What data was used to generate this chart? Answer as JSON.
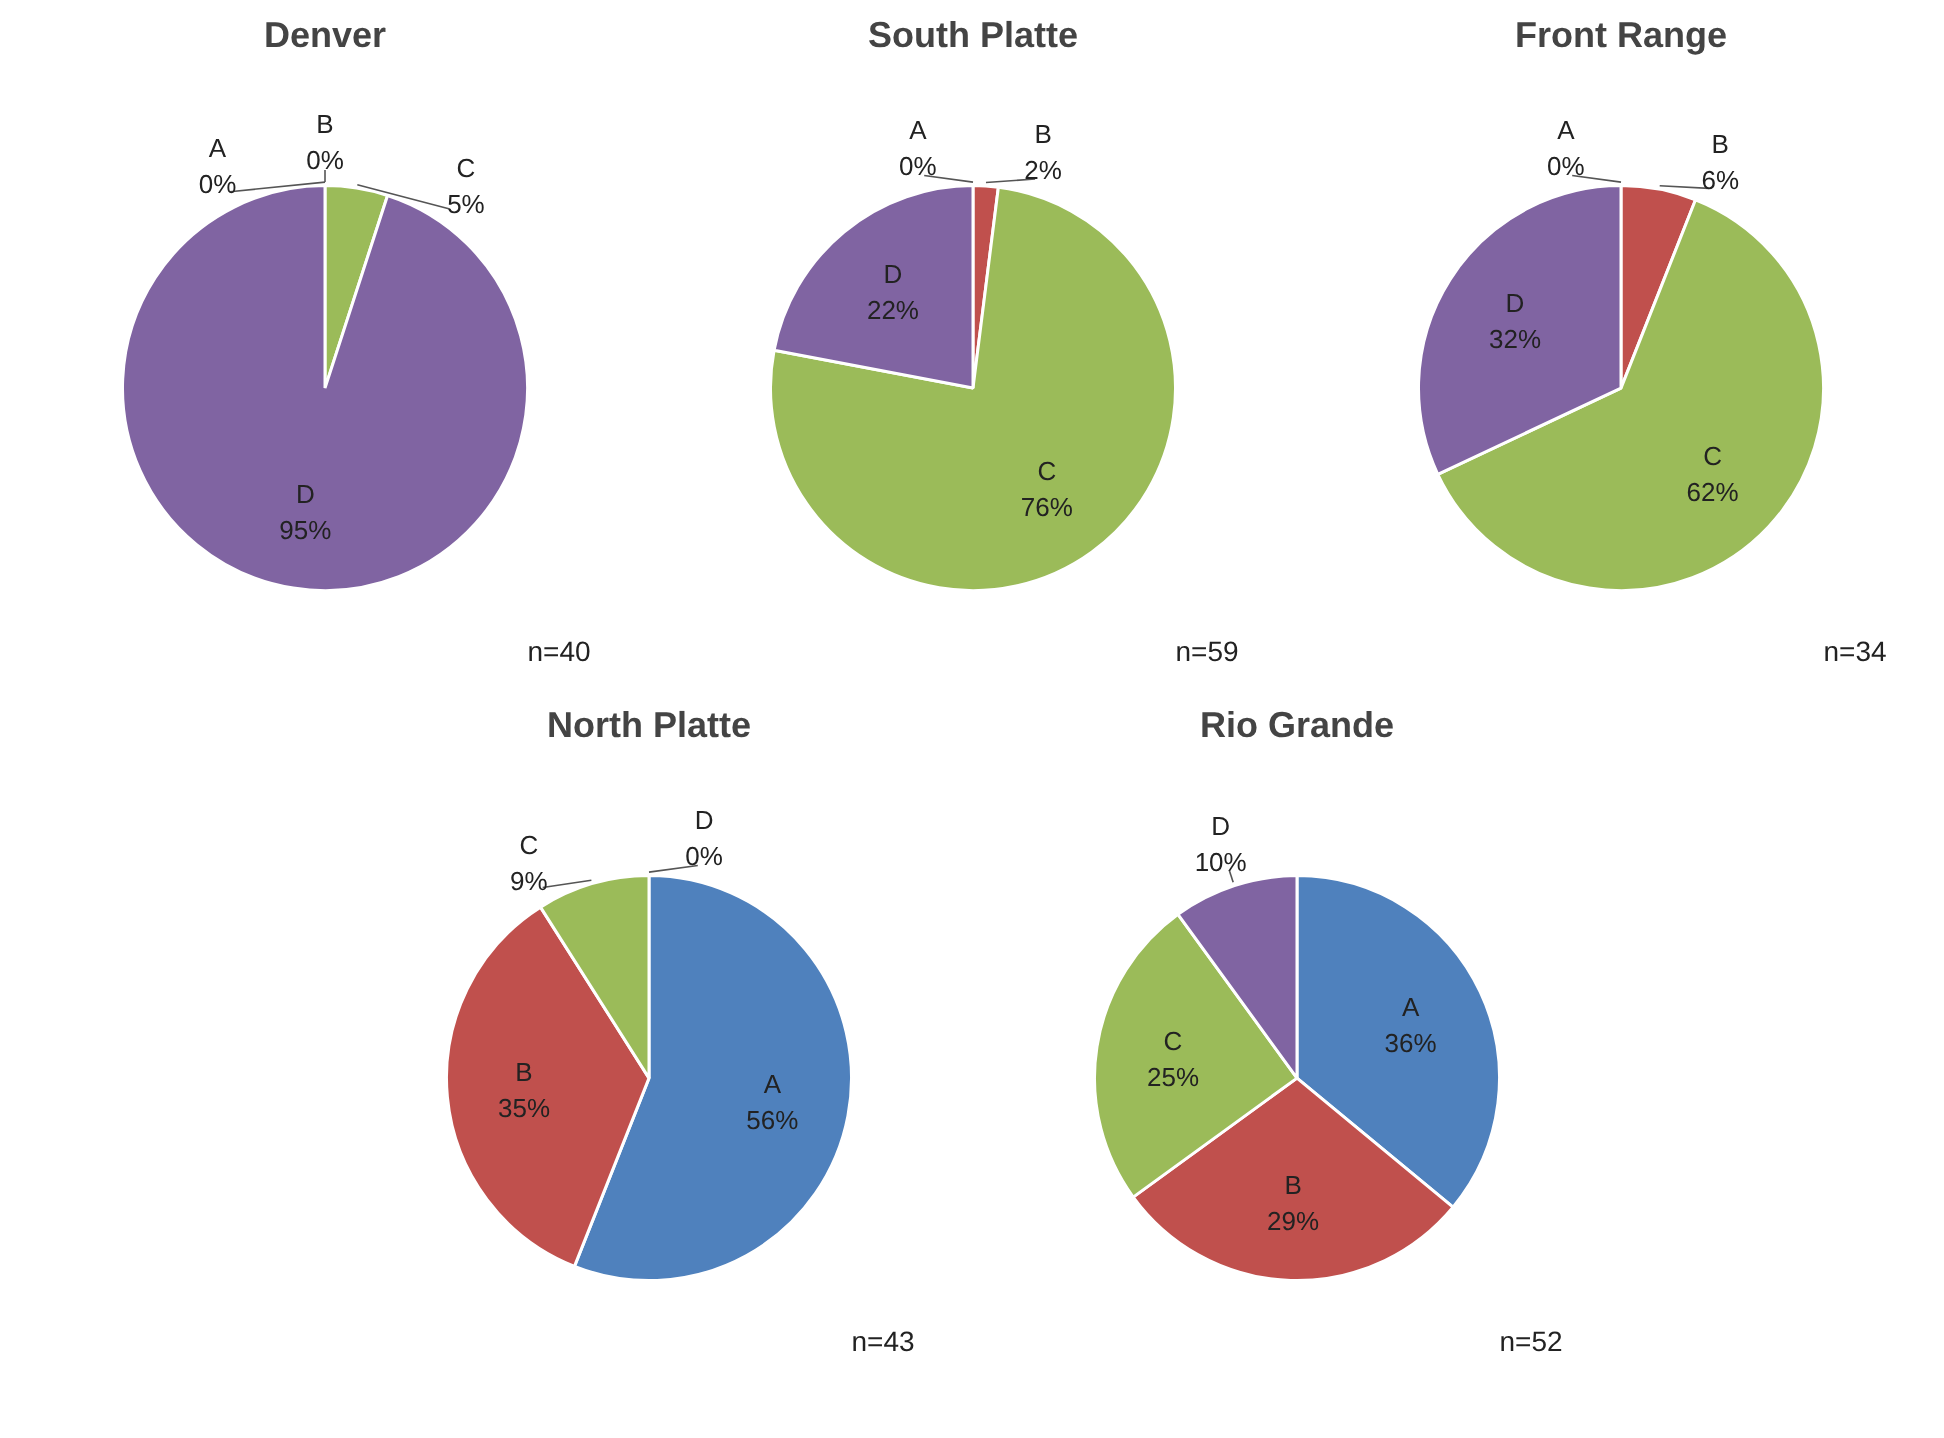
{
  "chart_data": [
    {
      "type": "pie",
      "title": "Denver",
      "categories": [
        "A",
        "B",
        "C",
        "D"
      ],
      "values": [
        0,
        0,
        5,
        95
      ],
      "colors": [
        "#4f81bd",
        "#c0504d",
        "#9bbb59",
        "#8064a2"
      ],
      "value_labels": [
        "0%",
        "0%",
        "5%",
        "95%"
      ],
      "annotations": [
        "n=40"
      ]
    },
    {
      "type": "pie",
      "title": "South Platte",
      "categories": [
        "A",
        "B",
        "C",
        "D"
      ],
      "values": [
        0,
        2,
        76,
        22
      ],
      "colors": [
        "#4f81bd",
        "#c0504d",
        "#9bbb59",
        "#8064a2"
      ],
      "value_labels": [
        "0%",
        "2%",
        "76%",
        "22%"
      ],
      "annotations": [
        "n=59"
      ]
    },
    {
      "type": "pie",
      "title": "Front Range",
      "categories": [
        "A",
        "B",
        "C",
        "D"
      ],
      "values": [
        0,
        6,
        62,
        32
      ],
      "colors": [
        "#4f81bd",
        "#c0504d",
        "#9bbb59",
        "#8064a2"
      ],
      "value_labels": [
        "0%",
        "6%",
        "62%",
        "32%"
      ],
      "annotations": [
        "n=34"
      ]
    },
    {
      "type": "pie",
      "title": "North Platte",
      "categories": [
        "A",
        "B",
        "C",
        "D"
      ],
      "values": [
        56,
        35,
        9,
        0
      ],
      "colors": [
        "#4f81bd",
        "#c0504d",
        "#9bbb59",
        "#8064a2"
      ],
      "value_labels": [
        "56%",
        "35%",
        "9%",
        "0%"
      ],
      "annotations": [
        "n=43"
      ]
    },
    {
      "type": "pie",
      "title": "Rio Grande",
      "categories": [
        "A",
        "B",
        "C",
        "D"
      ],
      "values": [
        36,
        29,
        25,
        10
      ],
      "colors": [
        "#4f81bd",
        "#c0504d",
        "#9bbb59",
        "#8064a2"
      ],
      "value_labels": [
        "36%",
        "29%",
        "25%",
        "10%"
      ],
      "annotations": [
        "n=52"
      ]
    }
  ]
}
